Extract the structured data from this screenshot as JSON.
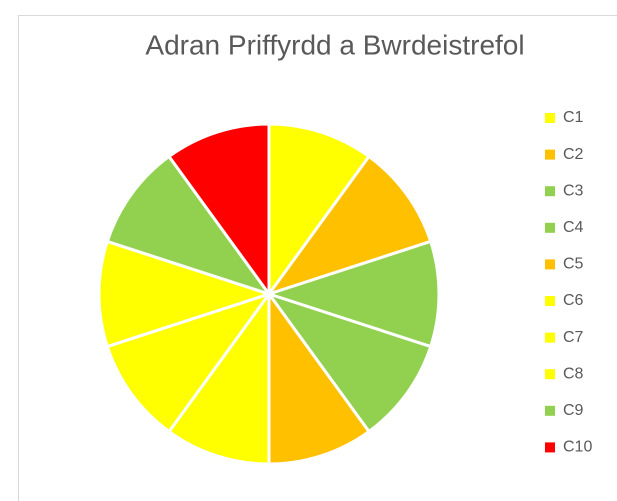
{
  "chart_data": {
    "type": "pie",
    "title": "Adran Priffyrdd a Bwrdeistrefol",
    "categories": [
      "C1",
      "C2",
      "C3",
      "C4",
      "C5",
      "C6",
      "C7",
      "C8",
      "C9",
      "C10"
    ],
    "values": [
      10,
      10,
      10,
      10,
      10,
      10,
      10,
      10,
      10,
      10
    ],
    "colors": [
      "#FFFF00",
      "#FFC000",
      "#92D050",
      "#92D050",
      "#FFC000",
      "#FFFF00",
      "#FFFF00",
      "#FFFF00",
      "#92D050",
      "#FF0000"
    ],
    "legend": "right"
  }
}
